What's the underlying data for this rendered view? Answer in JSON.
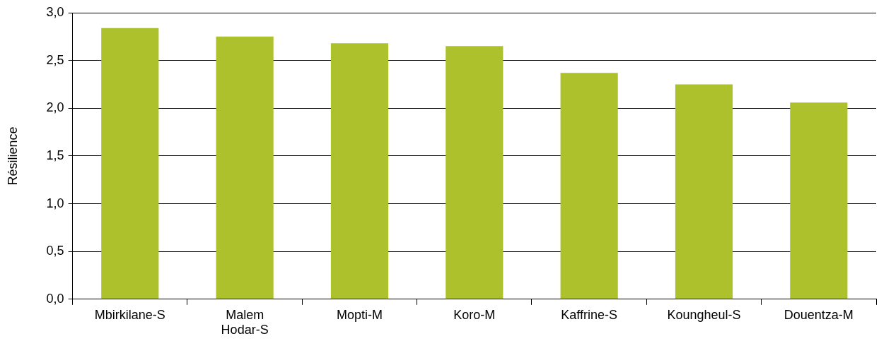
{
  "chart_data": {
    "type": "bar",
    "ylabel": "Résilience",
    "categories": [
      "Mbirkilane-S",
      "Malem Hodar-S",
      "Mopti-M",
      "Koro-M",
      "Kaffrine-S",
      "Koungheul-S",
      "Douentza-M"
    ],
    "values": [
      2.84,
      2.75,
      2.68,
      2.65,
      2.37,
      2.25,
      2.06
    ],
    "color": "#adc12c",
    "ylim": [
      0,
      3
    ],
    "yticks": [
      {
        "value": 0,
        "label": "0,0"
      },
      {
        "value": 0.5,
        "label": "0,5"
      },
      {
        "value": 1,
        "label": "1,0"
      },
      {
        "value": 1.5,
        "label": "1,5"
      },
      {
        "value": 2,
        "label": "2,0"
      },
      {
        "value": 2.5,
        "label": "2,5"
      },
      {
        "value": 3,
        "label": "3,0"
      }
    ],
    "grid": "y",
    "legend": false
  }
}
